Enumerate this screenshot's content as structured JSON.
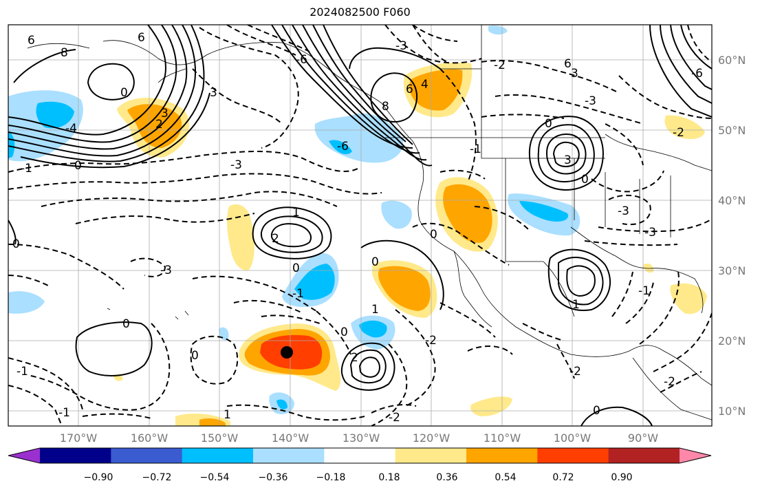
{
  "title": "2024082500 F060",
  "map": {
    "lon_labels": [
      "170°W",
      "160°W",
      "150°W",
      "140°W",
      "130°W",
      "120°W",
      "110°W",
      "100°W",
      "90°W"
    ],
    "lat_labels": [
      "60°N",
      "50°N",
      "40°N",
      "30°N",
      "20°N",
      "10°N"
    ],
    "lon_range": [
      -178,
      -80
    ],
    "lat_range": [
      8,
      65
    ],
    "grid": true,
    "marker": {
      "lon": -140,
      "lat": 18.5,
      "color": "#000000"
    }
  },
  "colorbar": {
    "tick_labels": [
      "−0.90",
      "−0.72",
      "−0.54",
      "−0.36",
      "−0.18",
      "0.18",
      "0.36",
      "0.54",
      "0.72",
      "0.90"
    ],
    "colors": [
      "#9b30d0",
      "#00008b",
      "#3a5cd0",
      "#00bfff",
      "#aadfff",
      "#ffffff",
      "#ffe98a",
      "#ffa500",
      "#ff3e00",
      "#b22222",
      "#ff88aa"
    ],
    "extend": "both"
  },
  "contour_labels": [
    "6",
    "8",
    "0",
    "6",
    "-4",
    "2",
    "3",
    "0",
    "-1",
    "-3",
    "3",
    "-6",
    "-3",
    "-6",
    "4",
    "8",
    "6",
    "3",
    "6",
    "0",
    "-2",
    "-3",
    "-1",
    "3",
    "0",
    "-3",
    "1",
    "2",
    "0",
    "-1",
    "0",
    "0",
    "0",
    "-3",
    "0",
    "-1",
    "-1",
    "1",
    "2",
    "-2",
    "-2",
    "0",
    "-1",
    "-2",
    "0",
    "1",
    "0",
    "1",
    "-2",
    "-3",
    "-6",
    "-2"
  ]
}
